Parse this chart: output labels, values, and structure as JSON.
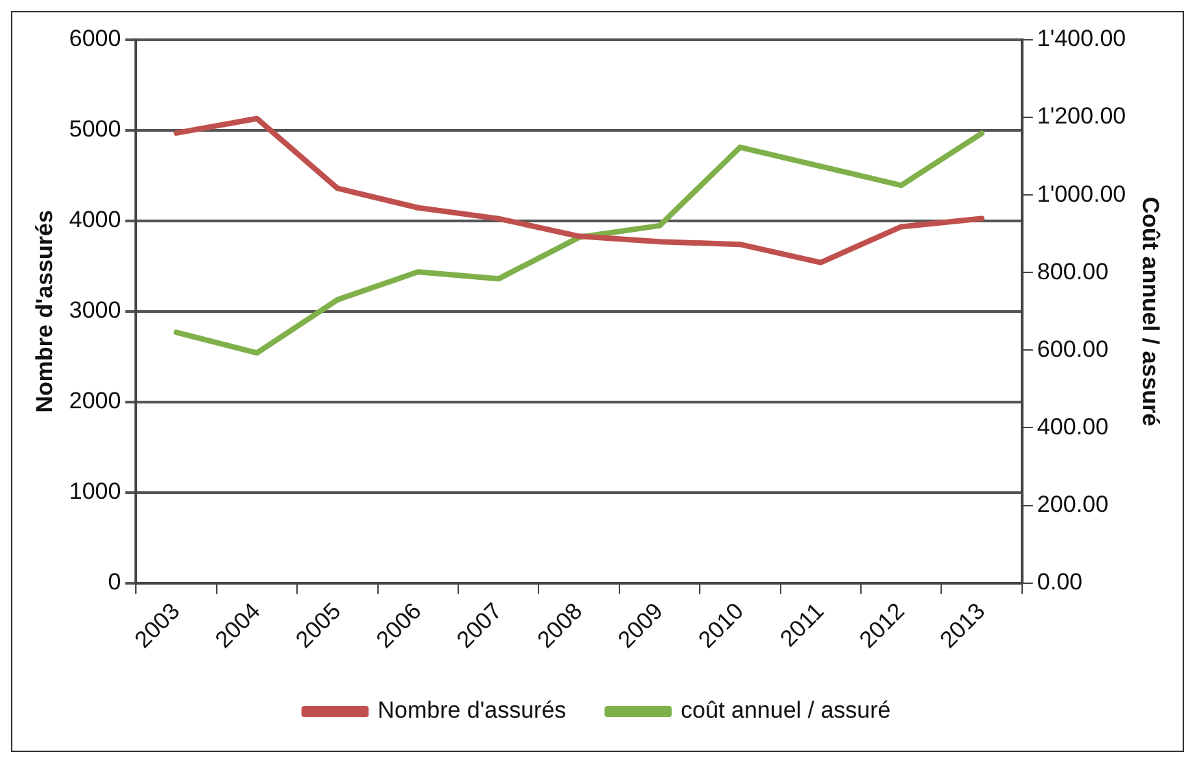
{
  "chart_data": {
    "type": "line",
    "ylabel": "Nombre d'assurés",
    "y2label": "Coût annuel / assuré",
    "categories": [
      "2003",
      "2004",
      "2005",
      "2006",
      "2007",
      "2008",
      "2009",
      "2010",
      "2011",
      "2012",
      "2013"
    ],
    "series": [
      {
        "name": "Nombre d'assurés",
        "color": "#c0504d",
        "values": [
          4970,
          5130,
          4360,
          4145,
          4025,
          3830,
          3770,
          3740,
          3540,
          3935,
          4025
        ]
      },
      {
        "name": "coût annuel / assuré",
        "color": "#7fb04a",
        "axis": "y2",
        "values": [
          646,
          593,
          730,
          802,
          784,
          891,
          921,
          1123,
          1074,
          1025,
          1159
        ]
      }
    ],
    "ylim": [
      0,
      6000
    ],
    "yticks": [
      0,
      1000,
      2000,
      3000,
      4000,
      5000,
      6000
    ],
    "y2lim": [
      0,
      1400
    ],
    "y2ticks": [
      {
        "value": 0,
        "label": "0.00"
      },
      {
        "value": 200,
        "label": "200.00"
      },
      {
        "value": 400,
        "label": "400.00"
      },
      {
        "value": 600,
        "label": "600.00"
      },
      {
        "value": 800,
        "label": "800.00"
      },
      {
        "value": 1000,
        "label": "1'000.00"
      },
      {
        "value": 1200,
        "label": "1'200.00"
      },
      {
        "value": 1400,
        "label": "1'400.00"
      }
    ],
    "grid": "y",
    "legend": "bottom",
    "marker": "none",
    "line_style": "solid"
  }
}
